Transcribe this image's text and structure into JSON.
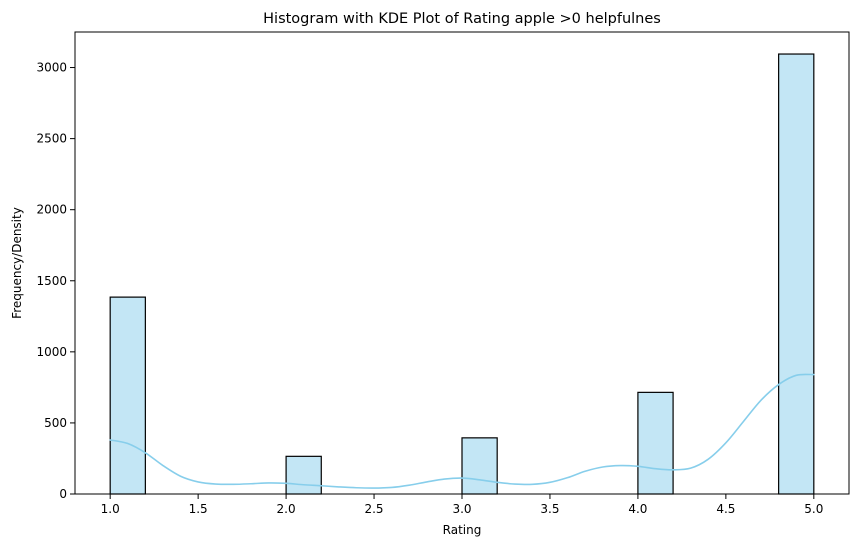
{
  "chart_data": {
    "type": "bar",
    "title": "Histogram with KDE Plot of Rating apple >0 helpfulnes",
    "xlabel": "Rating",
    "ylabel": "Frequency/Density",
    "xlim": [
      0.8,
      5.2
    ],
    "ylim": [
      0,
      3250
    ],
    "grid": false,
    "legend": "none",
    "bar_fill": "#87ceeb",
    "bar_fill_opacity": 0.5,
    "bar_edge": "#000000",
    "kde_color": "#87ceeb",
    "x_ticks": [
      {
        "value": 1.0,
        "label": "1.0"
      },
      {
        "value": 1.5,
        "label": "1.5"
      },
      {
        "value": 2.0,
        "label": "2.0"
      },
      {
        "value": 2.5,
        "label": "2.5"
      },
      {
        "value": 3.0,
        "label": "3.0"
      },
      {
        "value": 3.5,
        "label": "3.5"
      },
      {
        "value": 4.0,
        "label": "4.0"
      },
      {
        "value": 4.5,
        "label": "4.5"
      },
      {
        "value": 5.0,
        "label": "5.0"
      }
    ],
    "y_ticks": [
      {
        "value": 0,
        "label": "0"
      },
      {
        "value": 500,
        "label": "500"
      },
      {
        "value": 1000,
        "label": "1000"
      },
      {
        "value": 1500,
        "label": "1500"
      },
      {
        "value": 2000,
        "label": "2000"
      },
      {
        "value": 2500,
        "label": "2500"
      },
      {
        "value": 3000,
        "label": "3000"
      }
    ],
    "bins": [
      {
        "x0": 1.0,
        "x1": 1.2,
        "count": 1385
      },
      {
        "x0": 2.0,
        "x1": 2.2,
        "count": 265
      },
      {
        "x0": 3.0,
        "x1": 3.2,
        "count": 395
      },
      {
        "x0": 4.0,
        "x1": 4.2,
        "count": 715
      },
      {
        "x0": 4.8,
        "x1": 5.0,
        "count": 3095
      }
    ],
    "kde": {
      "x": [
        1.0,
        1.1,
        1.2,
        1.3,
        1.4,
        1.5,
        1.6,
        1.7,
        1.8,
        1.9,
        2.0,
        2.1,
        2.2,
        2.3,
        2.4,
        2.5,
        2.6,
        2.7,
        2.8,
        2.9,
        3.0,
        3.1,
        3.2,
        3.3,
        3.4,
        3.5,
        3.6,
        3.7,
        3.8,
        3.9,
        4.0,
        4.1,
        4.2,
        4.3,
        4.4,
        4.5,
        4.6,
        4.7,
        4.8,
        4.9,
        5.0
      ],
      "y": [
        380,
        355,
        290,
        200,
        125,
        85,
        70,
        68,
        72,
        78,
        75,
        65,
        58,
        50,
        44,
        42,
        46,
        62,
        85,
        105,
        112,
        100,
        82,
        70,
        68,
        82,
        115,
        160,
        190,
        200,
        195,
        178,
        170,
        182,
        245,
        360,
        510,
        660,
        770,
        835,
        840
      ]
    }
  }
}
